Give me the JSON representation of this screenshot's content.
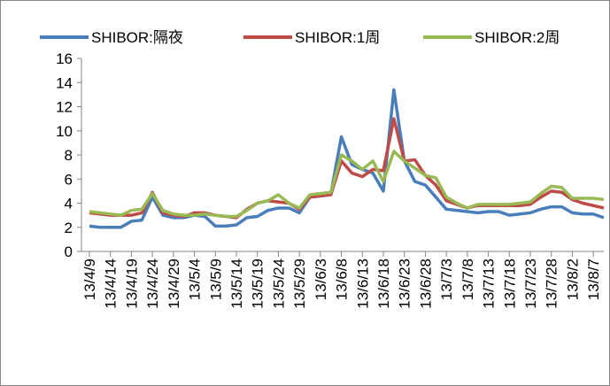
{
  "chart_data": {
    "type": "line",
    "categories": [
      "13/4/9",
      null,
      "13/4/14",
      null,
      "13/4/19",
      null,
      "13/4/24",
      null,
      "13/4/29",
      null,
      "13/5/4",
      null,
      "13/5/9",
      null,
      "13/5/14",
      null,
      "13/5/19",
      null,
      "13/5/24",
      null,
      "13/5/29",
      null,
      "13/6/3",
      null,
      "13/6/8",
      null,
      "13/6/13",
      null,
      "13/6/18",
      null,
      "13/6/23",
      null,
      "13/6/28",
      null,
      "13/7/3",
      null,
      "13/7/8",
      null,
      "13/7/13",
      null,
      "13/7/18",
      null,
      "13/7/23",
      null,
      "13/7/28",
      null,
      "13/8/2",
      null,
      "13/8/7",
      null
    ],
    "series": [
      {
        "name": "SHIBOR:隔夜",
        "color": "#4a7ebb",
        "values": [
          2.1,
          2.0,
          2.0,
          2.0,
          2.5,
          2.6,
          4.5,
          3.0,
          2.8,
          2.8,
          3.0,
          2.9,
          2.1,
          2.1,
          2.2,
          2.8,
          2.9,
          3.4,
          3.6,
          3.6,
          3.2,
          4.5,
          4.6,
          4.8,
          9.5,
          7.2,
          6.8,
          6.5,
          5.0,
          13.4,
          7.5,
          5.8,
          5.5,
          4.5,
          3.5,
          3.4,
          3.3,
          3.2,
          3.3,
          3.3,
          3.0,
          3.1,
          3.2,
          3.5,
          3.7,
          3.7,
          3.2,
          3.1,
          3.1,
          2.8
        ]
      },
      {
        "name": "SHIBOR:1周",
        "color": "#be4b48",
        "values": [
          3.2,
          3.1,
          3.0,
          3.0,
          3.0,
          3.2,
          4.9,
          3.2,
          3.0,
          2.9,
          3.2,
          3.2,
          3.0,
          2.9,
          2.8,
          3.5,
          4.0,
          4.2,
          4.1,
          4.0,
          3.5,
          4.5,
          4.6,
          4.7,
          7.5,
          6.5,
          6.2,
          6.8,
          6.7,
          11.0,
          7.5,
          7.6,
          6.3,
          5.5,
          4.2,
          3.9,
          3.6,
          3.8,
          3.8,
          3.8,
          3.8,
          3.8,
          3.9,
          4.5,
          5.0,
          4.9,
          4.3,
          4.0,
          3.8,
          3.6
        ]
      },
      {
        "name": "SHIBOR:2周",
        "color": "#98b954",
        "values": [
          3.3,
          3.2,
          3.1,
          3.0,
          3.4,
          3.5,
          4.8,
          3.4,
          3.1,
          3.0,
          3.0,
          3.1,
          3.0,
          2.9,
          2.9,
          3.4,
          4.0,
          4.2,
          4.7,
          4.0,
          3.6,
          4.7,
          4.8,
          4.9,
          8.0,
          7.5,
          6.8,
          7.5,
          5.8,
          8.3,
          7.5,
          6.9,
          6.3,
          6.1,
          4.5,
          4.0,
          3.6,
          3.9,
          3.9,
          3.9,
          3.9,
          4.0,
          4.1,
          4.8,
          5.4,
          5.3,
          4.4,
          4.4,
          4.4,
          4.3
        ]
      }
    ],
    "ylim": [
      0,
      16
    ],
    "yticks": [
      0,
      2,
      4,
      6,
      8,
      10,
      12,
      14,
      16
    ],
    "grid": false,
    "legend": "top"
  }
}
